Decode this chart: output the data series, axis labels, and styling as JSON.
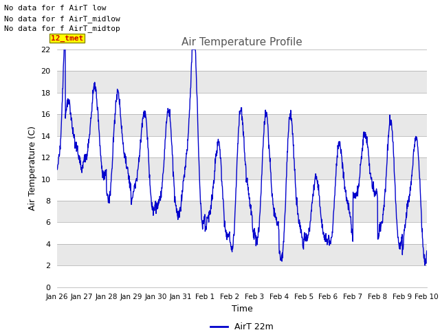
{
  "title": "Air Temperature Profile",
  "xlabel": "Time",
  "ylabel": "Air Temperature (C)",
  "ylim": [
    0,
    22
  ],
  "yticks": [
    0,
    2,
    4,
    6,
    8,
    10,
    12,
    14,
    16,
    18,
    20,
    22
  ],
  "line_color": "#0000CC",
  "line_width": 1.0,
  "legend_label": "AirT 22m",
  "bg_color": "#FFFFFF",
  "plot_bg_color": "#E8E8E8",
  "annotations": [
    "No data for f AirT low",
    "No data for f AirT_midlow",
    "No data for f AirT_midtop"
  ],
  "annotation_color": "#000000",
  "highlight_box_text": "12_tmet",
  "highlight_box_color": "#CC0000",
  "highlight_box_bg": "#FFFF00",
  "x_tick_labels": [
    "Jan 26",
    "Jan 27",
    "Jan 28",
    "Jan 29",
    "Jan 30",
    "Jan 31",
    "Feb 1",
    "Feb 2",
    "Feb 3",
    "Feb 4",
    "Feb 5",
    "Feb 6",
    "Feb 7",
    "Feb 8",
    "Feb 9",
    "Feb 10"
  ],
  "num_points": 1440,
  "figsize": [
    6.4,
    4.8
  ],
  "dpi": 100
}
